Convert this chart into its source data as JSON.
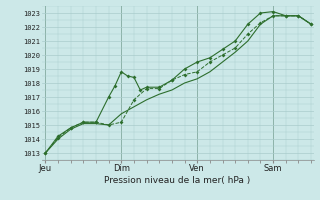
{
  "xlabel": "Pression niveau de la mer( hPa )",
  "bg_color": "#cce8e8",
  "grid_color": "#aacccc",
  "line_color": "#2d6e2d",
  "ylim": [
    1012.5,
    1023.5
  ],
  "xlim": [
    -0.15,
    10.6
  ],
  "day_labels": [
    "Jeu",
    "Dim",
    "Ven",
    "Sam"
  ],
  "day_positions": [
    0,
    3,
    6,
    9
  ],
  "ytick_values": [
    1013,
    1014,
    1015,
    1016,
    1017,
    1018,
    1019,
    1020,
    1021,
    1022,
    1023
  ],
  "ytick_labels": [
    "1013",
    "1014",
    "1015",
    "1016",
    "1017",
    "1018",
    "1019",
    "1020",
    "1021",
    "1022",
    "1023"
  ],
  "line1_x": [
    0,
    0.5,
    1.0,
    1.5,
    2.0,
    2.5,
    3.0,
    3.5,
    4.0,
    4.5,
    5.0,
    5.5,
    6.0,
    6.5,
    7.0,
    7.5,
    8.0,
    8.5,
    9.0,
    9.5,
    10.0,
    10.5
  ],
  "line1_y": [
    1013.0,
    1014.1,
    1014.8,
    1015.2,
    1015.2,
    1015.0,
    1015.2,
    1016.8,
    1017.6,
    1017.6,
    1018.2,
    1018.6,
    1018.8,
    1019.5,
    1020.0,
    1020.5,
    1021.5,
    1022.3,
    1022.8,
    1022.8,
    1022.8,
    1022.2
  ],
  "line2_x": [
    0,
    0.5,
    1.0,
    1.5,
    2.0,
    2.5,
    3.0,
    3.5,
    4.0,
    4.5,
    5.0,
    5.5,
    6.0,
    6.5,
    7.0,
    7.5,
    8.0,
    8.5,
    9.0,
    9.5,
    10.0,
    10.5
  ],
  "line2_y": [
    1013.0,
    1014.0,
    1014.7,
    1015.1,
    1015.1,
    1015.0,
    1015.8,
    1016.3,
    1016.8,
    1017.2,
    1017.5,
    1018.0,
    1018.3,
    1018.8,
    1019.5,
    1020.2,
    1021.0,
    1022.2,
    1022.8,
    1022.8,
    1022.8,
    1022.2
  ],
  "line3_x": [
    0,
    0.5,
    1.0,
    1.5,
    2.0,
    2.5,
    2.75,
    3.0,
    3.25,
    3.5,
    3.75,
    4.0,
    4.5,
    5.0,
    5.5,
    6.0,
    6.5,
    7.0,
    7.5,
    8.0,
    8.5,
    9.0,
    9.5,
    10.0,
    10.5
  ],
  "line3_y": [
    1013.0,
    1014.2,
    1014.8,
    1015.2,
    1015.2,
    1017.0,
    1017.8,
    1018.8,
    1018.5,
    1018.4,
    1017.5,
    1017.7,
    1017.7,
    1018.2,
    1019.0,
    1019.5,
    1019.8,
    1020.4,
    1021.0,
    1022.2,
    1023.0,
    1023.1,
    1022.8,
    1022.8,
    1022.2
  ]
}
